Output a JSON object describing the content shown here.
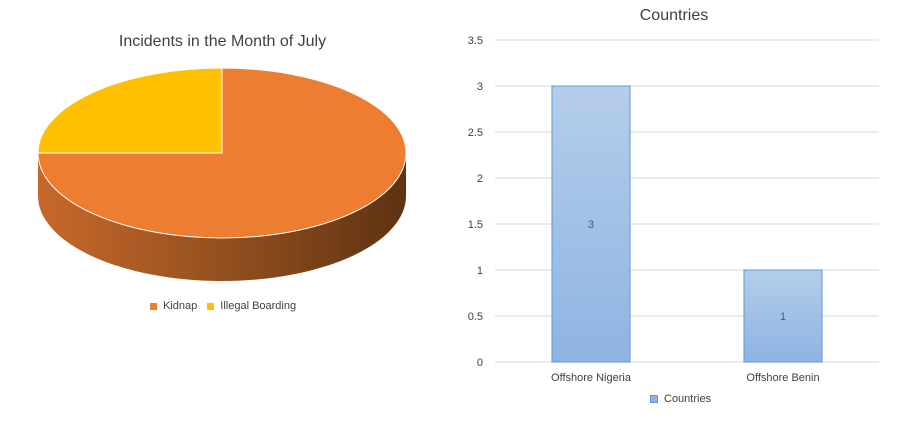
{
  "chart_data": [
    {
      "type": "pie",
      "title": "Incidents in the Month of July",
      "categories": [
        "Kidnap",
        "Illegal Boarding"
      ],
      "values": [
        3,
        1
      ],
      "colors": [
        "#ED7D31",
        "#FFC000"
      ],
      "style": "3d",
      "legend": "bottom"
    },
    {
      "type": "bar",
      "title": "Countries",
      "categories": [
        "Offshore Nigeria",
        "Offshore Benin"
      ],
      "series": [
        {
          "name": "Countries",
          "values": [
            3,
            1
          ],
          "data_labels": [
            "3",
            "1"
          ]
        }
      ],
      "ylim": [
        0,
        3.5
      ],
      "yticks": [
        "0",
        "0.5",
        "1",
        "1.5",
        "2",
        "2.5",
        "3",
        "3.5"
      ],
      "grid": true,
      "legend": "bottom",
      "colors": {
        "bar_top": "#B4CDEA",
        "bar_bottom": "#8FB4E3",
        "bar_border": "#5B9BD5"
      }
    }
  ]
}
